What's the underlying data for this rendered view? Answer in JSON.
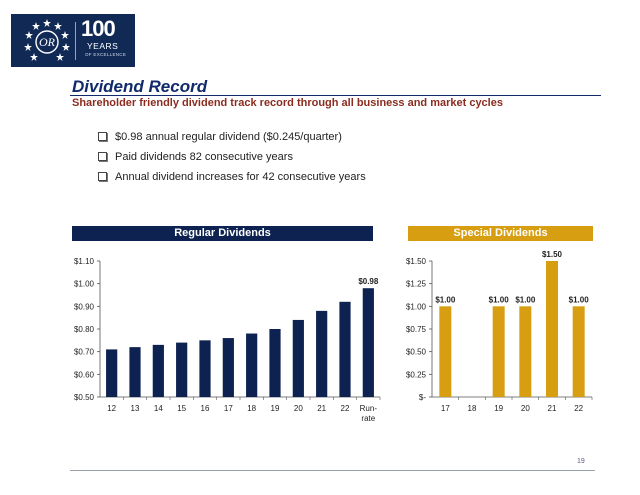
{
  "logo": {
    "number": "100",
    "years": "YEARS",
    "tagline": "OF EXCELLENCE",
    "monogram": "OR",
    "color": "#102a55"
  },
  "slide": {
    "title": "Dividend Record",
    "subtitle": "Shareholder friendly dividend track record through all business and market cycles",
    "bullets": [
      "$0.98 annual regular dividend ($0.245/quarter)",
      "Paid dividends 82 consecutive years",
      "Annual dividend increases for 42 consecutive years"
    ],
    "page_number": "19"
  },
  "chart_data": [
    {
      "type": "bar",
      "title": "Regular Dividends",
      "categories": [
        "12",
        "13",
        "14",
        "15",
        "16",
        "17",
        "18",
        "19",
        "20",
        "21",
        "22",
        "Run-rate"
      ],
      "values": [
        0.71,
        0.72,
        0.73,
        0.74,
        0.75,
        0.76,
        0.78,
        0.8,
        0.84,
        0.88,
        0.92,
        0.98
      ],
      "data_labels": [
        "",
        "",
        "",
        "",
        "",
        "",
        "",
        "",
        "",
        "",
        "",
        "$0.98"
      ],
      "ylim": [
        0.5,
        1.1
      ],
      "yticks": [
        "$0.50",
        "$0.60",
        "$0.70",
        "$0.80",
        "$0.90",
        "$1.00",
        "$1.10"
      ],
      "ytick_values": [
        0.5,
        0.6,
        0.7,
        0.8,
        0.9,
        1.0,
        1.1
      ],
      "bar_color": "#0d2250",
      "band_color": "#0d2250",
      "grid": false
    },
    {
      "type": "bar",
      "title": "Special Dividends",
      "categories": [
        "17",
        "18",
        "19",
        "20",
        "21",
        "22"
      ],
      "values": [
        1.0,
        0,
        1.0,
        1.0,
        1.5,
        1.0
      ],
      "data_labels": [
        "$1.00",
        "",
        "$1.00",
        "$1.00",
        "$1.50",
        "$1.00"
      ],
      "ylim": [
        0,
        1.5
      ],
      "yticks": [
        "$-",
        "$0.25",
        "$0.50",
        "$0.75",
        "$1.00",
        "$1.25",
        "$1.50"
      ],
      "ytick_values": [
        0,
        0.25,
        0.5,
        0.75,
        1.0,
        1.25,
        1.5
      ],
      "bar_color": "#d69e10",
      "band_color": "#d69e10",
      "grid": false
    }
  ]
}
